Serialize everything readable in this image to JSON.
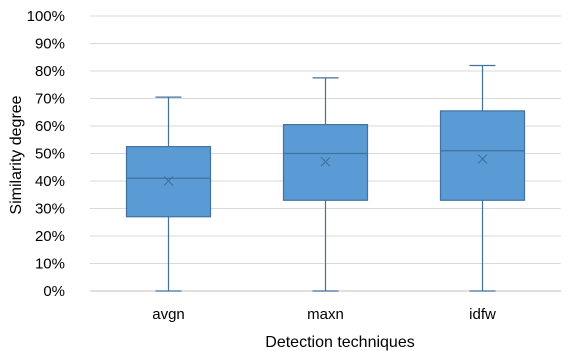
{
  "chart_data": {
    "type": "box",
    "title": "",
    "xlabel": "Detection techniques",
    "ylabel": "Similarity degree",
    "categories": [
      "avgn",
      "maxn",
      "idfw"
    ],
    "y_ticks": [
      "0%",
      "10%",
      "20%",
      "30%",
      "40%",
      "50%",
      "60%",
      "70%",
      "80%",
      "90%",
      "100%"
    ],
    "ylim": [
      0,
      100
    ],
    "grid": true,
    "legend": "none",
    "boxes": [
      {
        "category": "avgn",
        "min": 0,
        "q1": 27,
        "median": 41,
        "mean": 40,
        "q3": 52.5,
        "max": 70.5
      },
      {
        "category": "maxn",
        "min": 0,
        "q1": 33,
        "median": 50,
        "mean": 47,
        "q3": 60.5,
        "max": 77.5
      },
      {
        "category": "idfw",
        "min": 0,
        "q1": 33,
        "median": 51,
        "mean": 48,
        "q3": 65.5,
        "max": 82
      }
    ],
    "colors": {
      "box_fill": "#5b9bd5",
      "box_stroke": "#41719c",
      "grid": "#d9d9d9",
      "axis": "#bfbfbf"
    }
  }
}
